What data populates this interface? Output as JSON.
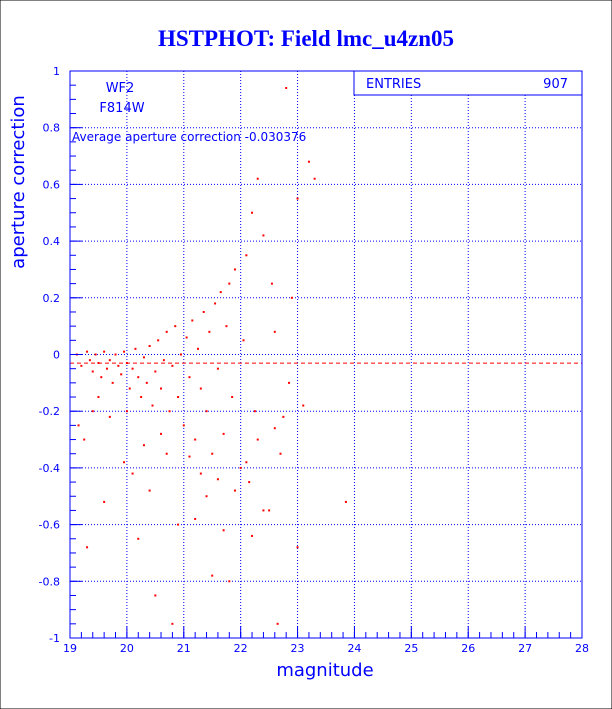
{
  "title": "HSTPHOT: Field lmc_u4zn05",
  "stats": {
    "label": "ENTRIES",
    "value": "907"
  },
  "annotations": {
    "chip": "WF2",
    "filter": "F814W",
    "average": "Average aperture correction -0.030376"
  },
  "colors": {
    "axis": "#0000ff",
    "grid": "#0000ff",
    "points": "#ff0000",
    "mean_line": "#ff0000",
    "background": "#ffffff"
  },
  "chart_data": {
    "type": "scatter",
    "title": "HSTPHOT: Field lmc_u4zn05",
    "xlabel": "magnitude",
    "ylabel": "aperture correction",
    "xlim": [
      19,
      28
    ],
    "ylim": [
      -1,
      1
    ],
    "x_ticks": [
      "19",
      "20",
      "21",
      "22",
      "23",
      "24",
      "25",
      "26",
      "27",
      "28"
    ],
    "y_ticks": [
      "-1",
      "-0.8",
      "-0.6",
      "-0.4",
      "-0.2",
      "0",
      "0.2",
      "0.4",
      "0.6",
      "0.8",
      "1"
    ],
    "grid": true,
    "mean_line_y": -0.030376,
    "entries": 907,
    "series": [
      {
        "points": [
          [
            19.12,
            0.0
          ],
          [
            19.2,
            -0.04
          ],
          [
            19.3,
            0.01
          ],
          [
            19.35,
            -0.02
          ],
          [
            19.4,
            -0.06
          ],
          [
            19.45,
            0.0
          ],
          [
            19.5,
            -0.03
          ],
          [
            19.55,
            -0.08
          ],
          [
            19.6,
            0.01
          ],
          [
            19.65,
            -0.05
          ],
          [
            19.7,
            -0.02
          ],
          [
            19.75,
            -0.1
          ],
          [
            19.8,
            0.0
          ],
          [
            19.85,
            -0.04
          ],
          [
            19.9,
            -0.07
          ],
          [
            19.95,
            0.01
          ],
          [
            20.0,
            -0.03
          ],
          [
            20.05,
            -0.12
          ],
          [
            20.1,
            -0.05
          ],
          [
            20.15,
            0.02
          ],
          [
            20.2,
            -0.08
          ],
          [
            20.25,
            -0.15
          ],
          [
            20.3,
            -0.01
          ],
          [
            20.35,
            -0.1
          ],
          [
            20.4,
            0.03
          ],
          [
            20.45,
            -0.18
          ],
          [
            20.5,
            -0.06
          ],
          [
            20.55,
            0.05
          ],
          [
            20.6,
            -0.12
          ],
          [
            20.65,
            -0.02
          ],
          [
            20.7,
            0.08
          ],
          [
            20.75,
            -0.2
          ],
          [
            20.8,
            -0.04
          ],
          [
            20.85,
            0.1
          ],
          [
            20.9,
            -0.15
          ],
          [
            20.95,
            0.0
          ],
          [
            21.0,
            -0.25
          ],
          [
            21.05,
            0.06
          ],
          [
            21.1,
            -0.08
          ],
          [
            21.15,
            0.12
          ],
          [
            21.2,
            -0.3
          ],
          [
            21.25,
            0.02
          ],
          [
            21.3,
            -0.12
          ],
          [
            21.35,
            0.15
          ],
          [
            21.4,
            -0.2
          ],
          [
            21.45,
            0.08
          ],
          [
            21.5,
            -0.35
          ],
          [
            21.55,
            0.18
          ],
          [
            21.6,
            -0.05
          ],
          [
            21.65,
            0.22
          ],
          [
            21.7,
            -0.28
          ],
          [
            21.75,
            0.1
          ],
          [
            21.8,
            0.25
          ],
          [
            21.85,
            -0.15
          ],
          [
            21.9,
            0.3
          ],
          [
            22.0,
            -0.4
          ],
          [
            22.05,
            0.05
          ],
          [
            22.1,
            0.35
          ],
          [
            22.15,
            -0.45
          ],
          [
            22.2,
            0.5
          ],
          [
            22.25,
            -0.2
          ],
          [
            22.3,
            0.62
          ],
          [
            22.4,
            0.42
          ],
          [
            22.5,
            -0.55
          ],
          [
            22.55,
            0.25
          ],
          [
            22.6,
            0.08
          ],
          [
            22.7,
            -0.35
          ],
          [
            22.8,
            0.94
          ],
          [
            22.85,
            -0.1
          ],
          [
            22.9,
            0.2
          ],
          [
            23.0,
            0.55
          ],
          [
            23.1,
            -0.18
          ],
          [
            23.2,
            0.68
          ],
          [
            23.3,
            0.62
          ],
          [
            23.85,
            -0.52
          ],
          [
            19.25,
            -0.3
          ],
          [
            19.15,
            -0.25
          ],
          [
            19.4,
            -0.2
          ],
          [
            19.6,
            -0.52
          ],
          [
            19.95,
            -0.38
          ],
          [
            20.2,
            -0.65
          ],
          [
            20.5,
            -0.85
          ],
          [
            20.8,
            -0.95
          ],
          [
            21.5,
            -0.78
          ],
          [
            21.8,
            -0.8
          ],
          [
            22.4,
            -0.55
          ],
          [
            22.65,
            -0.95
          ],
          [
            23.0,
            -0.68
          ],
          [
            20.1,
            -0.42
          ],
          [
            20.4,
            -0.48
          ],
          [
            20.9,
            -0.6
          ],
          [
            21.2,
            -0.58
          ],
          [
            21.4,
            -0.5
          ],
          [
            21.7,
            -0.62
          ],
          [
            22.2,
            -0.64
          ],
          [
            19.3,
            -0.68
          ],
          [
            20.3,
            -0.32
          ],
          [
            20.6,
            -0.28
          ],
          [
            21.1,
            -0.36
          ],
          [
            21.6,
            -0.44
          ],
          [
            22.3,
            -0.3
          ],
          [
            22.75,
            -0.22
          ],
          [
            19.5,
            -0.15
          ],
          [
            19.7,
            -0.22
          ],
          [
            20.0,
            -0.2
          ],
          [
            20.7,
            -0.35
          ],
          [
            21.3,
            -0.42
          ],
          [
            21.9,
            -0.48
          ],
          [
            22.1,
            -0.38
          ],
          [
            22.6,
            -0.26
          ]
        ]
      }
    ]
  }
}
